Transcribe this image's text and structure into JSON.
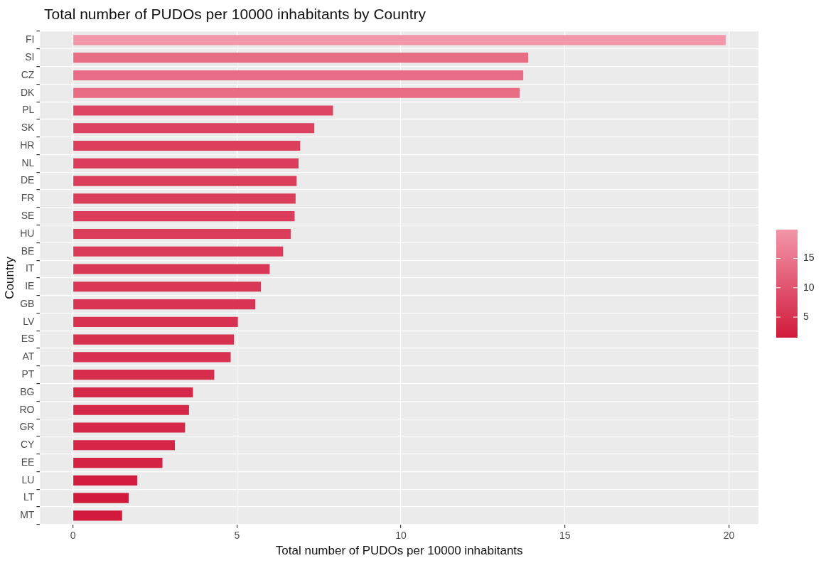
{
  "chart_data": {
    "type": "bar",
    "orientation": "horizontal",
    "title": "Total number of PUDOs per 10000 inhabitants by Country",
    "xlabel": "Total number of PUDOs per 10000 inhabitants",
    "ylabel": "Country",
    "categories": [
      "FI",
      "SI",
      "CZ",
      "DK",
      "PL",
      "SK",
      "HR",
      "NL",
      "DE",
      "FR",
      "SE",
      "HU",
      "BE",
      "IT",
      "IE",
      "GB",
      "LV",
      "ES",
      "AT",
      "PT",
      "BG",
      "RO",
      "GR",
      "CY",
      "EE",
      "LU",
      "LT",
      "MT"
    ],
    "values": [
      19.9,
      13.88,
      13.73,
      13.62,
      7.93,
      7.36,
      6.93,
      6.88,
      6.82,
      6.79,
      6.76,
      6.64,
      6.41,
      6.0,
      5.73,
      5.56,
      5.03,
      4.91,
      4.81,
      4.31,
      3.66,
      3.54,
      3.42,
      3.11,
      2.73,
      1.96,
      1.7,
      1.5
    ],
    "colors": [
      "#f396a9",
      "#e86e85",
      "#e86c85",
      "#e76c84",
      "#dd4562",
      "#dc415f",
      "#db3f5c",
      "#db3e5c",
      "#db3e5b",
      "#db3e5b",
      "#db3d5b",
      "#da3d5a",
      "#da3b59",
      "#d93857",
      "#d93755",
      "#d83554",
      "#d83251",
      "#d73150",
      "#d73050",
      "#d62d4d",
      "#d52949",
      "#d52848",
      "#d52747",
      "#d42546",
      "#d32243",
      "#d21d3f",
      "#d11b3d",
      "#d11a3c"
    ],
    "cvalues": [
      19.9,
      13.88,
      13.73,
      13.62,
      7.93,
      7.36,
      6.93,
      6.88,
      6.82,
      6.79,
      6.76,
      6.64,
      6.41,
      6.0,
      5.73,
      5.56,
      5.03,
      4.91,
      4.81,
      4.31,
      3.66,
      3.54,
      3.42,
      3.11,
      2.73,
      1.96,
      1.7,
      1.5
    ],
    "clim": [
      1.5,
      19.9
    ],
    "cticks": [
      5,
      10,
      15
    ],
    "xlim": [
      -1,
      20.9
    ],
    "xticks": [
      0,
      5,
      10,
      15,
      20
    ],
    "grid": true
  }
}
